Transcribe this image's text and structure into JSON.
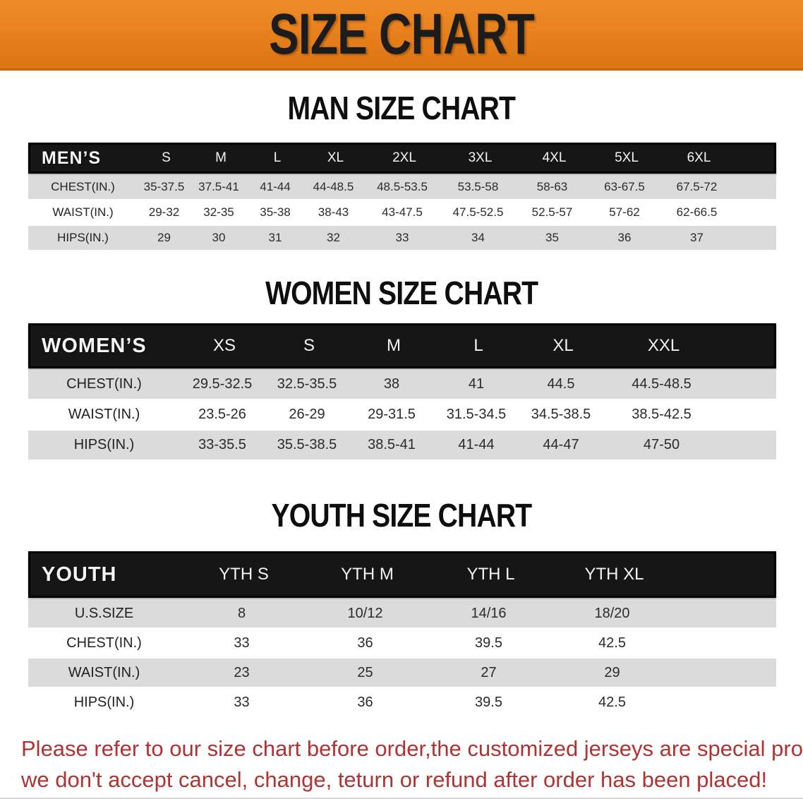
{
  "banner": {
    "title": "SIZE CHART"
  },
  "colors": {
    "banner_orange": "#E67F1B",
    "header_bar": "#161616",
    "row_shade": "#DBDBDB",
    "footer_text": "#B03232"
  },
  "sections": [
    {
      "id": "men",
      "heading": "MAN SIZE CHART",
      "header": [
        "MEN’S",
        "S",
        "M",
        "L",
        "XL",
        "2XL",
        "3XL",
        "4XL",
        "5XL",
        "6XL"
      ],
      "rows": [
        {
          "label": "CHEST(IN.)",
          "values": [
            "35-37.5",
            "37.5-41",
            "41-44",
            "44-48.5",
            "48.5-53.5",
            "53.5-58",
            "58-63",
            "63-67.5",
            "67.5-72"
          ]
        },
        {
          "label": "WAIST(IN.)",
          "values": [
            "29-32",
            "32-35",
            "35-38",
            "38-43",
            "43-47.5",
            "47.5-52.5",
            "52.5-57",
            "57-62",
            "62-66.5"
          ]
        },
        {
          "label": "HIPS(IN.)",
          "values": [
            "29",
            "30",
            "31",
            "32",
            "33",
            "34",
            "35",
            "36",
            "37"
          ]
        }
      ]
    },
    {
      "id": "women",
      "heading": "WOMEN SIZE CHART",
      "header": [
        "WOMEN’S",
        "XS",
        "S",
        "M",
        "L",
        "XL",
        "XXL"
      ],
      "rows": [
        {
          "label": "CHEST(IN.)",
          "values": [
            "29.5-32.5",
            "32.5-35.5",
            "38",
            "41",
            "44.5",
            "44.5-48.5"
          ]
        },
        {
          "label": "WAIST(IN.)",
          "values": [
            "23.5-26",
            "26-29",
            "29-31.5",
            "31.5-34.5",
            "34.5-38.5",
            "38.5-42.5"
          ]
        },
        {
          "label": "HIPS(IN.)",
          "values": [
            "33-35.5",
            "35.5-38.5",
            "38.5-41",
            "41-44",
            "44-47",
            "47-50"
          ]
        }
      ]
    },
    {
      "id": "youth",
      "heading": "YOUTH SIZE CHART",
      "header": [
        "YOUTH",
        "YTH S",
        "YTH M",
        "YTH L",
        "YTH XL"
      ],
      "rows": [
        {
          "label": "U.S.SIZE",
          "values": [
            "8",
            "10/12",
            "14/16",
            "18/20"
          ]
        },
        {
          "label": "CHEST(IN.)",
          "values": [
            "33",
            "36",
            "39.5",
            "42.5"
          ]
        },
        {
          "label": "WAIST(IN.)",
          "values": [
            "23",
            "25",
            "27",
            "29"
          ]
        },
        {
          "label": "HIPS(IN.)",
          "values": [
            "33",
            "36",
            "39.5",
            "42.5"
          ]
        }
      ]
    }
  ],
  "footer": {
    "line1": "Please refer to our size chart before order,the customized jerseys are special products,",
    "line2": "we don't accept cancel, change, teturn or refund after order has been placed!"
  }
}
